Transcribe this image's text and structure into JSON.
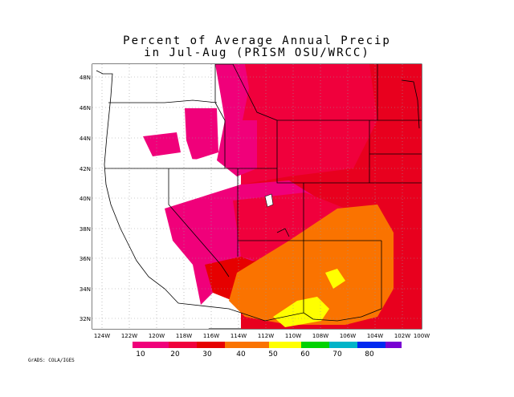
{
  "title": {
    "line1": "Percent of Average Annual Precip",
    "line2": "in Jul-Aug (PRISM OSU/WRCC)"
  },
  "credit": "GrADS: COLA/IGES",
  "axes": {
    "lat_labels": [
      "48N",
      "46N",
      "44N",
      "42N",
      "40N",
      "38N",
      "36N",
      "34N",
      "32N"
    ],
    "lon_labels": [
      "124W",
      "122W",
      "120W",
      "118W",
      "116W",
      "114W",
      "112W",
      "110W",
      "108W",
      "106W",
      "104W",
      "102W",
      "100W"
    ]
  },
  "colorbar": {
    "labels": [
      "10",
      "20",
      "30",
      "40",
      "50",
      "60",
      "70",
      "80"
    ],
    "colors": [
      "#f0007a",
      "#f0003c",
      "#e60000",
      "#fa7300",
      "#ffff00",
      "#00d200",
      "#00b4c8",
      "#0028f0",
      "#7800d2"
    ]
  },
  "colors": {
    "land_white": "#ffffff",
    "boundary": "#000000",
    "grid": "#9a9a9a"
  }
}
